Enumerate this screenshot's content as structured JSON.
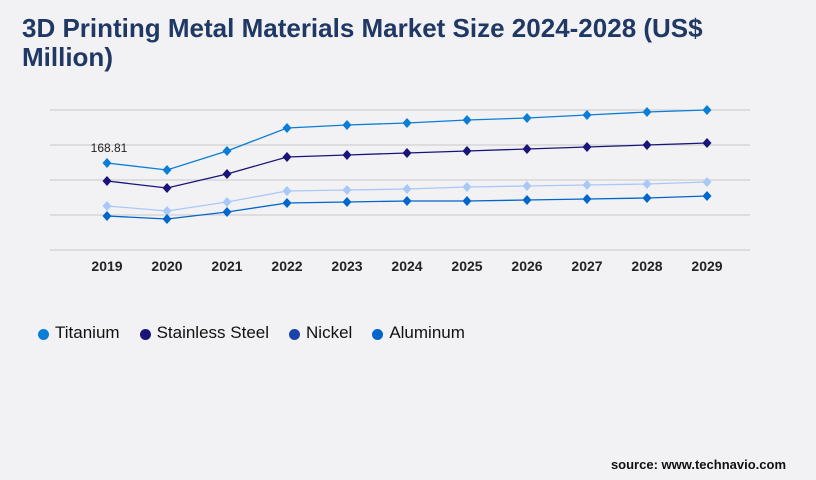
{
  "chart_data": {
    "type": "line",
    "title": "3D Printing Metal Materials Market Size 2024-2028 (US$ Million)",
    "xlabel": "",
    "ylabel": "",
    "categories": [
      "2019",
      "2020",
      "2021",
      "2022",
      "2023",
      "2024",
      "2025",
      "2026",
      "2027",
      "2028",
      "2029"
    ],
    "ylim": [
      0,
      271.6
    ],
    "grid": true,
    "legend_position": "bottom-left",
    "series": [
      {
        "name": "Titanium",
        "color": "#0a7ed6",
        "values": [
          168.81,
          155.2,
          192.1,
          236.7,
          242.5,
          246.4,
          252.2,
          256.1,
          261.9,
          267.7,
          271.6
        ]
      },
      {
        "name": "Stainless Steel",
        "color": "#1a1478",
        "values": [
          133.8,
          120.3,
          147.4,
          180.4,
          184.3,
          188.2,
          192.1,
          196.0,
          199.8,
          203.7,
          207.6
        ]
      },
      {
        "name": "Nickel",
        "color": "#a8c8f8",
        "legend_color": "#1a44aa",
        "values": [
          85.4,
          75.7,
          93.1,
          114.5,
          116.4,
          118.3,
          122.2,
          124.2,
          126.1,
          128.0,
          131.9
        ]
      },
      {
        "name": "Aluminum",
        "color": "#0066cc",
        "values": [
          66.0,
          60.1,
          73.7,
          91.2,
          93.1,
          95.1,
          95.1,
          97.0,
          98.9,
          100.9,
          104.8
        ]
      }
    ],
    "annotations": [
      {
        "text": "168.81"
      }
    ]
  },
  "source": "source: www.technavio.com"
}
